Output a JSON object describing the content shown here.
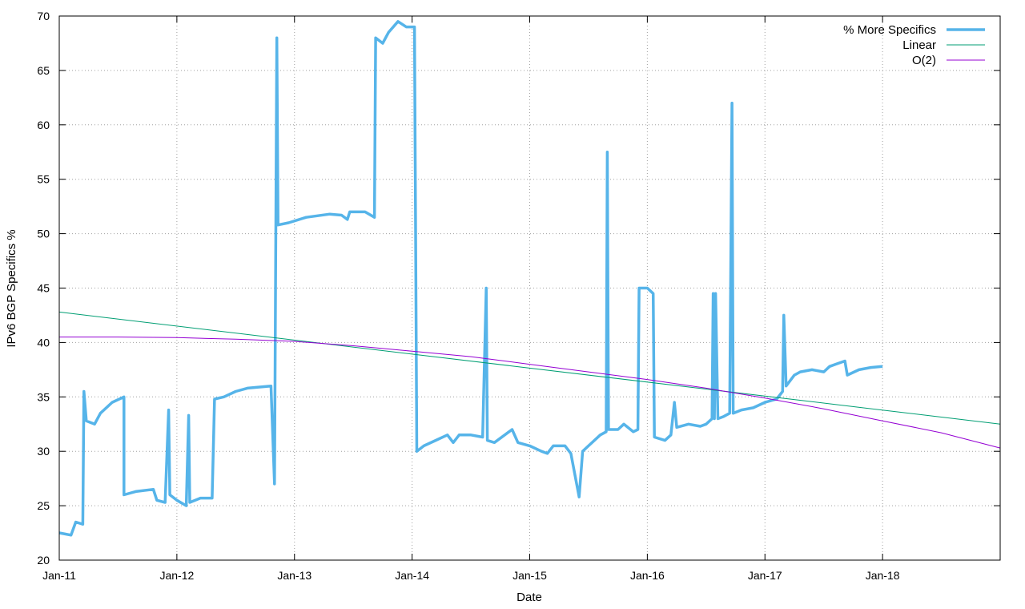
{
  "chart_data": {
    "type": "line",
    "title": "",
    "xlabel": "Date",
    "ylabel": "IPv6 BGP Specifics %",
    "xlim": [
      2011.0,
      2019.0
    ],
    "ylim": [
      20,
      70
    ],
    "x_ticks": [
      {
        "value": 2011,
        "label": "Jan-11"
      },
      {
        "value": 2012,
        "label": "Jan-12"
      },
      {
        "value": 2013,
        "label": "Jan-13"
      },
      {
        "value": 2014,
        "label": "Jan-14"
      },
      {
        "value": 2015,
        "label": "Jan-15"
      },
      {
        "value": 2016,
        "label": "Jan-16"
      },
      {
        "value": 2017,
        "label": "Jan-17"
      },
      {
        "value": 2018,
        "label": "Jan-18"
      }
    ],
    "y_ticks": [
      20,
      25,
      30,
      35,
      40,
      45,
      50,
      55,
      60,
      65,
      70
    ],
    "grid": true,
    "legend_position": "top-right",
    "colors": {
      "data": "#56b4e9",
      "linear": "#009e73",
      "quadratic": "#9400d3",
      "grid": "#a0a0a0"
    },
    "series": [
      {
        "name": "% More Specifics",
        "style": "thick",
        "points": [
          [
            2011.0,
            22.5
          ],
          [
            2011.05,
            22.4
          ],
          [
            2011.1,
            22.3
          ],
          [
            2011.14,
            23.5
          ],
          [
            2011.2,
            23.3
          ],
          [
            2011.21,
            35.5
          ],
          [
            2011.23,
            32.8
          ],
          [
            2011.3,
            32.5
          ],
          [
            2011.35,
            33.5
          ],
          [
            2011.45,
            34.5
          ],
          [
            2011.55,
            35.0
          ],
          [
            2011.55,
            26.0
          ],
          [
            2011.65,
            26.3
          ],
          [
            2011.8,
            26.5
          ],
          [
            2011.83,
            25.5
          ],
          [
            2011.9,
            25.3
          ],
          [
            2011.93,
            33.8
          ],
          [
            2011.94,
            26.0
          ],
          [
            2012.0,
            25.5
          ],
          [
            2012.08,
            25.0
          ],
          [
            2012.1,
            33.3
          ],
          [
            2012.11,
            25.3
          ],
          [
            2012.2,
            25.7
          ],
          [
            2012.3,
            25.7
          ],
          [
            2012.32,
            34.8
          ],
          [
            2012.4,
            35.0
          ],
          [
            2012.5,
            35.5
          ],
          [
            2012.6,
            35.8
          ],
          [
            2012.8,
            36.0
          ],
          [
            2012.83,
            27.0
          ],
          [
            2012.85,
            68.0
          ],
          [
            2012.86,
            50.8
          ],
          [
            2012.95,
            51.0
          ],
          [
            2013.1,
            51.5
          ],
          [
            2013.3,
            51.8
          ],
          [
            2013.4,
            51.7
          ],
          [
            2013.45,
            51.3
          ],
          [
            2013.47,
            52.0
          ],
          [
            2013.6,
            52.0
          ],
          [
            2013.68,
            51.5
          ],
          [
            2013.69,
            68.0
          ],
          [
            2013.75,
            67.5
          ],
          [
            2013.8,
            68.5
          ],
          [
            2013.88,
            69.5
          ],
          [
            2013.95,
            69.0
          ],
          [
            2014.02,
            69.0
          ],
          [
            2014.04,
            30.0
          ],
          [
            2014.1,
            30.5
          ],
          [
            2014.2,
            31.0
          ],
          [
            2014.3,
            31.5
          ],
          [
            2014.35,
            30.8
          ],
          [
            2014.4,
            31.5
          ],
          [
            2014.5,
            31.5
          ],
          [
            2014.6,
            31.3
          ],
          [
            2014.63,
            45.0
          ],
          [
            2014.64,
            31.0
          ],
          [
            2014.7,
            30.8
          ],
          [
            2014.85,
            32.0
          ],
          [
            2014.9,
            30.8
          ],
          [
            2015.0,
            30.5
          ],
          [
            2015.1,
            30.0
          ],
          [
            2015.15,
            29.8
          ],
          [
            2015.2,
            30.5
          ],
          [
            2015.3,
            30.5
          ],
          [
            2015.35,
            29.8
          ],
          [
            2015.42,
            25.8
          ],
          [
            2015.45,
            30.0
          ],
          [
            2015.5,
            30.5
          ],
          [
            2015.6,
            31.5
          ],
          [
            2015.65,
            31.8
          ],
          [
            2015.66,
            57.5
          ],
          [
            2015.67,
            32.0
          ],
          [
            2015.75,
            32.0
          ],
          [
            2015.8,
            32.5
          ],
          [
            2015.88,
            31.8
          ],
          [
            2015.92,
            32.0
          ],
          [
            2015.93,
            45.0
          ],
          [
            2016.0,
            45.0
          ],
          [
            2016.05,
            44.5
          ],
          [
            2016.06,
            31.3
          ],
          [
            2016.15,
            31.0
          ],
          [
            2016.2,
            31.5
          ],
          [
            2016.23,
            34.5
          ],
          [
            2016.25,
            32.2
          ],
          [
            2016.35,
            32.5
          ],
          [
            2016.45,
            32.3
          ],
          [
            2016.5,
            32.5
          ],
          [
            2016.55,
            33.0
          ],
          [
            2016.56,
            44.5
          ],
          [
            2016.57,
            33.0
          ],
          [
            2016.58,
            44.5
          ],
          [
            2016.6,
            33.0
          ],
          [
            2016.65,
            33.2
          ],
          [
            2016.7,
            33.5
          ],
          [
            2016.72,
            62.0
          ],
          [
            2016.73,
            33.5
          ],
          [
            2016.8,
            33.8
          ],
          [
            2016.9,
            34.0
          ],
          [
            2017.0,
            34.5
          ],
          [
            2017.1,
            34.8
          ],
          [
            2017.15,
            35.5
          ],
          [
            2017.16,
            42.5
          ],
          [
            2017.18,
            36.0
          ],
          [
            2017.25,
            37.0
          ],
          [
            2017.3,
            37.3
          ],
          [
            2017.4,
            37.5
          ],
          [
            2017.5,
            37.3
          ],
          [
            2017.55,
            37.8
          ],
          [
            2017.6,
            38.0
          ],
          [
            2017.68,
            38.3
          ],
          [
            2017.7,
            37.0
          ],
          [
            2017.8,
            37.5
          ],
          [
            2017.9,
            37.7
          ],
          [
            2018.0,
            37.8
          ]
        ]
      },
      {
        "name": "Linear",
        "style": "thin",
        "points": [
          [
            2011.0,
            42.8
          ],
          [
            2019.0,
            32.5
          ]
        ]
      },
      {
        "name": "O(2)",
        "style": "thin",
        "points": [
          [
            2011.0,
            40.5
          ],
          [
            2011.5,
            40.5
          ],
          [
            2012.0,
            40.45
          ],
          [
            2012.5,
            40.3
          ],
          [
            2013.0,
            40.1
          ],
          [
            2013.5,
            39.7
          ],
          [
            2014.0,
            39.2
          ],
          [
            2014.5,
            38.7
          ],
          [
            2015.0,
            38.0
          ],
          [
            2015.5,
            37.3
          ],
          [
            2016.0,
            36.6
          ],
          [
            2016.5,
            35.8
          ],
          [
            2017.0,
            34.9
          ],
          [
            2017.5,
            33.9
          ],
          [
            2018.0,
            32.8
          ],
          [
            2018.5,
            31.7
          ],
          [
            2019.0,
            30.3
          ]
        ]
      }
    ]
  }
}
